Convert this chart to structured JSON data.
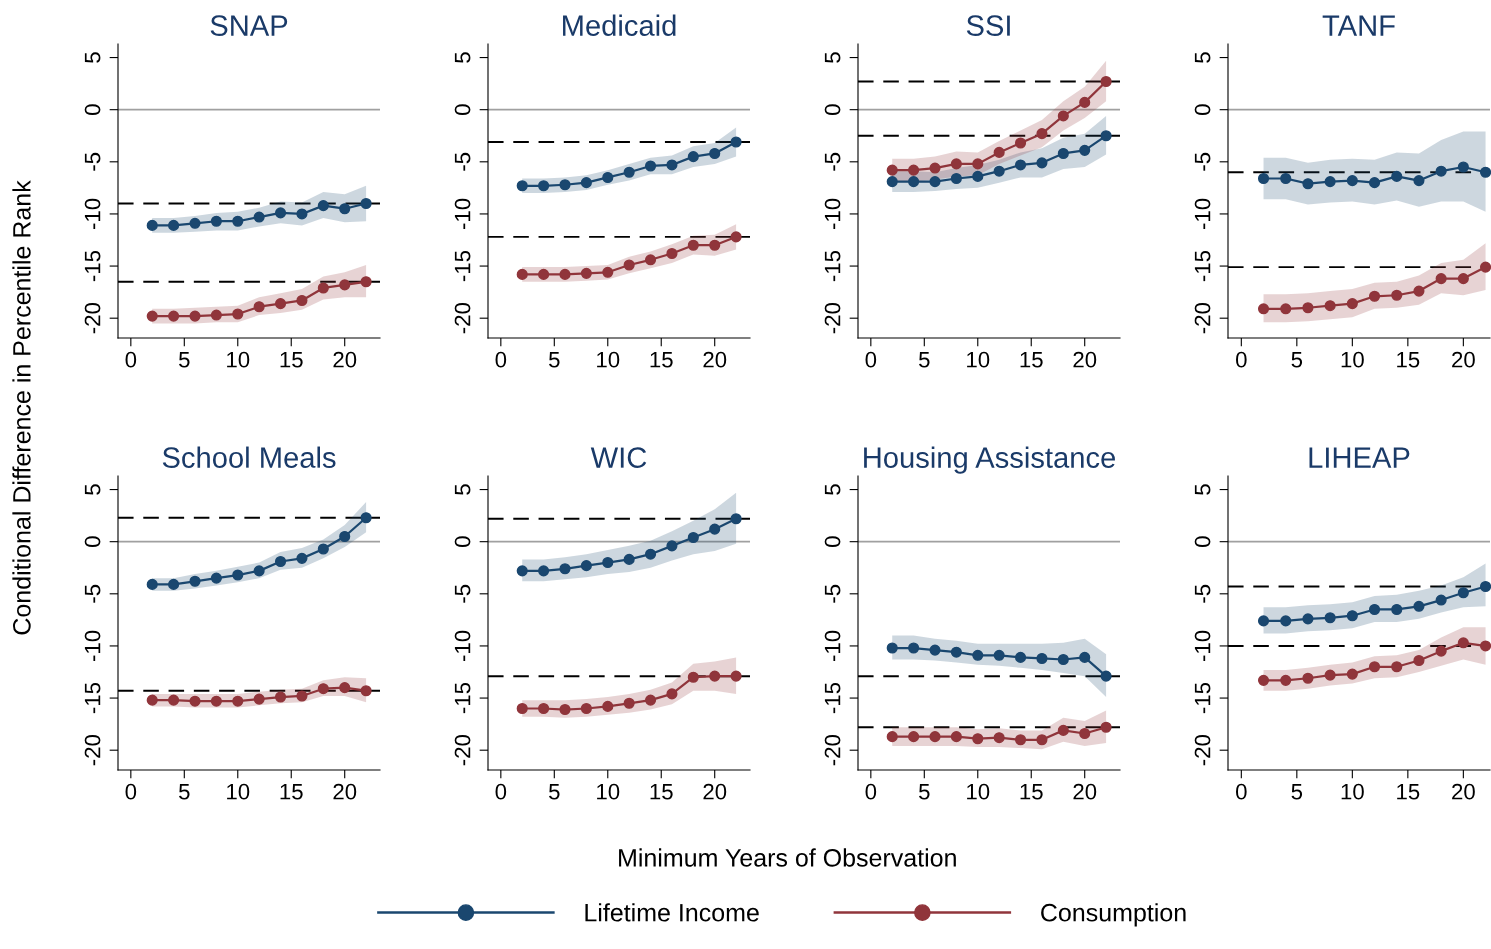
{
  "chart_data": [
    {
      "type": "line",
      "title": "SNAP",
      "annotations": [
        "Minimum Years of Observation",
        "Conditional Difference in Percentile Rank"
      ],
      "legend": "bottom",
      "marker": "circle",
      "line_style": "solid",
      "grid": false,
      "x": [
        2,
        4,
        6,
        8,
        10,
        12,
        14,
        16,
        18,
        20,
        22
      ],
      "xlim": [
        -1.2,
        23.3
      ],
      "ylim": [
        -21.9,
        6.3
      ],
      "xticks": [
        0,
        5,
        10,
        15,
        20
      ],
      "yticks": [
        -20,
        -15,
        -10,
        -5,
        0,
        5
      ],
      "series": [
        {
          "name": "Lifetime Income",
          "color": "#1a476f",
          "values": [
            -11.1,
            -11.1,
            -10.9,
            -10.7,
            -10.7,
            -10.3,
            -9.9,
            -10.0,
            -9.2,
            -9.5,
            -9.0
          ],
          "lower": [
            -11.8,
            -11.8,
            -11.7,
            -11.6,
            -11.6,
            -11.2,
            -10.9,
            -11.1,
            -10.4,
            -10.8,
            -10.7
          ],
          "upper": [
            -10.4,
            -10.4,
            -10.2,
            -9.9,
            -9.8,
            -9.4,
            -8.8,
            -8.9,
            -7.9,
            -8.1,
            -7.3
          ]
        },
        {
          "name": "Consumption",
          "color": "#90353b",
          "values": [
            -19.8,
            -19.8,
            -19.8,
            -19.7,
            -19.6,
            -18.9,
            -18.6,
            -18.3,
            -17.1,
            -16.8,
            -16.5
          ],
          "lower": [
            -20.5,
            -20.5,
            -20.5,
            -20.4,
            -20.4,
            -19.7,
            -19.5,
            -19.2,
            -18.2,
            -18.0,
            -18.0
          ],
          "upper": [
            -19.1,
            -19.1,
            -19.0,
            -18.9,
            -18.8,
            -18.0,
            -17.6,
            -17.2,
            -16.0,
            -15.6,
            -14.9
          ]
        }
      ],
      "ref_lines": [
        {
          "axis": "y",
          "value": 0,
          "color": "#a0a0a0",
          "line_style": "solid"
        },
        {
          "axis": "y",
          "value": -9.0,
          "color": "#000000",
          "line_style": "dashed"
        },
        {
          "axis": "y",
          "value": -16.5,
          "color": "#000000",
          "line_style": "dashed"
        }
      ]
    },
    {
      "type": "line",
      "title": "Medicaid",
      "marker": "circle",
      "line_style": "solid",
      "grid": false,
      "x": [
        2,
        4,
        6,
        8,
        10,
        12,
        14,
        16,
        18,
        20,
        22
      ],
      "xlim": [
        -1.2,
        23.3
      ],
      "ylim": [
        -21.9,
        6.3
      ],
      "xticks": [
        0,
        5,
        10,
        15,
        20
      ],
      "yticks": [
        -20,
        -15,
        -10,
        -5,
        0,
        5
      ],
      "series": [
        {
          "color": "#1a476f",
          "values": [
            -7.3,
            -7.3,
            -7.2,
            -7.0,
            -6.5,
            -6.0,
            -5.4,
            -5.3,
            -4.5,
            -4.2,
            -3.1
          ],
          "lower": [
            -8.0,
            -8.0,
            -7.9,
            -7.7,
            -7.2,
            -6.8,
            -6.2,
            -6.2,
            -5.5,
            -5.2,
            -4.5
          ],
          "upper": [
            -6.6,
            -6.6,
            -6.5,
            -6.3,
            -5.8,
            -5.2,
            -4.6,
            -4.4,
            -3.5,
            -3.2,
            -1.7
          ]
        },
        {
          "color": "#90353b",
          "values": [
            -15.8,
            -15.8,
            -15.8,
            -15.7,
            -15.6,
            -14.9,
            -14.4,
            -13.8,
            -13.0,
            -13.0,
            -12.2
          ],
          "lower": [
            -16.5,
            -16.5,
            -16.5,
            -16.4,
            -16.3,
            -15.7,
            -15.2,
            -14.7,
            -13.9,
            -14.0,
            -13.4
          ],
          "upper": [
            -15.1,
            -15.1,
            -15.1,
            -15.0,
            -14.9,
            -14.1,
            -13.6,
            -12.9,
            -12.1,
            -12.0,
            -11.0
          ]
        }
      ],
      "ref_lines": [
        {
          "axis": "y",
          "value": 0,
          "color": "#a0a0a0",
          "line_style": "solid"
        },
        {
          "axis": "y",
          "value": -3.1,
          "color": "#000000",
          "line_style": "dashed"
        },
        {
          "axis": "y",
          "value": -12.2,
          "color": "#000000",
          "line_style": "dashed"
        }
      ]
    },
    {
      "type": "line",
      "title": "SSI",
      "marker": "circle",
      "line_style": "solid",
      "grid": false,
      "x": [
        2,
        4,
        6,
        8,
        10,
        12,
        14,
        16,
        18,
        20,
        22
      ],
      "xlim": [
        -1.2,
        23.3
      ],
      "ylim": [
        -21.9,
        6.3
      ],
      "xticks": [
        0,
        5,
        10,
        15,
        20
      ],
      "yticks": [
        -20,
        -15,
        -10,
        -5,
        0,
        5
      ],
      "series": [
        {
          "color": "#1a476f",
          "values": [
            -6.9,
            -6.9,
            -6.9,
            -6.6,
            -6.4,
            -5.9,
            -5.3,
            -5.1,
            -4.2,
            -3.9,
            -2.5
          ],
          "lower": [
            -7.9,
            -7.9,
            -7.8,
            -7.6,
            -7.5,
            -7.0,
            -6.5,
            -6.5,
            -5.7,
            -5.5,
            -4.3
          ],
          "upper": [
            -5.9,
            -5.9,
            -6.0,
            -5.6,
            -5.3,
            -4.8,
            -4.1,
            -3.7,
            -2.7,
            -2.3,
            -0.6
          ]
        },
        {
          "color": "#90353b",
          "values": [
            -5.8,
            -5.8,
            -5.6,
            -5.2,
            -5.2,
            -4.1,
            -3.2,
            -2.3,
            -0.6,
            0.7,
            2.7
          ],
          "lower": [
            -6.9,
            -6.9,
            -6.7,
            -6.4,
            -6.3,
            -5.2,
            -4.4,
            -3.6,
            -2.0,
            -0.8,
            0.8
          ],
          "upper": [
            -4.7,
            -4.7,
            -4.5,
            -4.0,
            -4.1,
            -3.0,
            -2.0,
            -1.0,
            0.8,
            2.2,
            4.7
          ]
        }
      ],
      "ref_lines": [
        {
          "axis": "y",
          "value": 0,
          "color": "#a0a0a0",
          "line_style": "solid"
        },
        {
          "axis": "y",
          "value": -2.5,
          "color": "#000000",
          "line_style": "dashed"
        },
        {
          "axis": "y",
          "value": 2.7,
          "color": "#000000",
          "line_style": "dashed"
        }
      ]
    },
    {
      "type": "line",
      "title": "TANF",
      "marker": "circle",
      "line_style": "solid",
      "grid": false,
      "x": [
        2,
        4,
        6,
        8,
        10,
        12,
        14,
        16,
        18,
        20,
        22
      ],
      "xlim": [
        -1.2,
        22.4
      ],
      "ylim": [
        -21.9,
        6.3
      ],
      "xticks": [
        0,
        5,
        10,
        15,
        20
      ],
      "yticks": [
        -20,
        -15,
        -10,
        -5,
        0,
        5
      ],
      "series": [
        {
          "color": "#1a476f",
          "values": [
            -6.6,
            -6.6,
            -7.1,
            -6.9,
            -6.8,
            -7.0,
            -6.4,
            -6.8,
            -5.9,
            -5.5,
            -6.0
          ],
          "lower": [
            -8.6,
            -8.6,
            -9.1,
            -8.9,
            -8.8,
            -9.1,
            -8.7,
            -9.3,
            -8.8,
            -8.8,
            -9.8
          ],
          "upper": [
            -4.6,
            -4.6,
            -5.1,
            -4.8,
            -4.7,
            -4.8,
            -4.1,
            -4.2,
            -2.9,
            -2.1,
            -2.1
          ]
        },
        {
          "color": "#90353b",
          "values": [
            -19.1,
            -19.1,
            -19.0,
            -18.8,
            -18.6,
            -17.9,
            -17.8,
            -17.4,
            -16.2,
            -16.2,
            -15.1
          ],
          "lower": [
            -20.4,
            -20.4,
            -20.3,
            -20.1,
            -19.9,
            -19.1,
            -19.0,
            -18.7,
            -17.6,
            -17.8,
            -17.3
          ],
          "upper": [
            -17.7,
            -17.7,
            -17.6,
            -17.4,
            -17.2,
            -16.6,
            -16.5,
            -15.9,
            -14.7,
            -14.4,
            -12.8
          ]
        }
      ],
      "ref_lines": [
        {
          "axis": "y",
          "value": 0,
          "color": "#a0a0a0",
          "line_style": "solid"
        },
        {
          "axis": "y",
          "value": -6.0,
          "color": "#000000",
          "line_style": "dashed"
        },
        {
          "axis": "y",
          "value": -15.1,
          "color": "#000000",
          "line_style": "dashed"
        }
      ]
    },
    {
      "type": "line",
      "title": "School Meals",
      "marker": "circle",
      "line_style": "solid",
      "grid": false,
      "x": [
        2,
        4,
        6,
        8,
        10,
        12,
        14,
        16,
        18,
        20,
        22
      ],
      "xlim": [
        -1.2,
        23.3
      ],
      "ylim": [
        -21.9,
        6.3
      ],
      "xticks": [
        0,
        5,
        10,
        15,
        20
      ],
      "yticks": [
        -20,
        -15,
        -10,
        -5,
        0,
        5
      ],
      "series": [
        {
          "color": "#1a476f",
          "values": [
            -4.1,
            -4.1,
            -3.8,
            -3.5,
            -3.2,
            -2.8,
            -1.9,
            -1.6,
            -0.7,
            0.5,
            2.3
          ],
          "lower": [
            -4.7,
            -4.7,
            -4.5,
            -4.2,
            -3.9,
            -3.5,
            -2.7,
            -2.5,
            -1.6,
            -0.5,
            0.9
          ],
          "upper": [
            -3.5,
            -3.5,
            -3.1,
            -2.8,
            -2.4,
            -2.0,
            -1.0,
            -0.6,
            0.2,
            1.6,
            3.8
          ]
        },
        {
          "color": "#90353b",
          "values": [
            -15.2,
            -15.2,
            -15.3,
            -15.3,
            -15.3,
            -15.1,
            -14.9,
            -14.8,
            -14.1,
            -14.0,
            -14.3
          ],
          "lower": [
            -15.8,
            -15.8,
            -15.9,
            -15.9,
            -15.9,
            -15.7,
            -15.5,
            -15.4,
            -14.8,
            -14.8,
            -15.4
          ],
          "upper": [
            -14.6,
            -14.6,
            -14.6,
            -14.6,
            -14.6,
            -14.4,
            -14.2,
            -14.1,
            -13.3,
            -13.0,
            -13.1
          ]
        }
      ],
      "ref_lines": [
        {
          "axis": "y",
          "value": 0,
          "color": "#a0a0a0",
          "line_style": "solid"
        },
        {
          "axis": "y",
          "value": 2.3,
          "color": "#000000",
          "line_style": "dashed"
        },
        {
          "axis": "y",
          "value": -14.3,
          "color": "#000000",
          "line_style": "dashed"
        }
      ]
    },
    {
      "type": "line",
      "title": "WIC",
      "marker": "circle",
      "line_style": "solid",
      "grid": false,
      "x": [
        2,
        4,
        6,
        8,
        10,
        12,
        14,
        16,
        18,
        20,
        22
      ],
      "xlim": [
        -1.2,
        23.3
      ],
      "ylim": [
        -21.9,
        6.3
      ],
      "xticks": [
        0,
        5,
        10,
        15,
        20
      ],
      "yticks": [
        -20,
        -15,
        -10,
        -5,
        0,
        5
      ],
      "series": [
        {
          "color": "#1a476f",
          "values": [
            -2.8,
            -2.8,
            -2.6,
            -2.3,
            -2.0,
            -1.7,
            -1.2,
            -0.4,
            0.4,
            1.2,
            2.2
          ],
          "lower": [
            -3.8,
            -3.8,
            -3.6,
            -3.4,
            -3.1,
            -2.9,
            -2.5,
            -1.8,
            -1.2,
            -0.9,
            -0.2
          ],
          "upper": [
            -1.7,
            -1.7,
            -1.5,
            -1.2,
            -0.8,
            -0.4,
            0.1,
            1.0,
            2.0,
            3.1,
            4.7
          ]
        },
        {
          "color": "#90353b",
          "values": [
            -16.0,
            -16.0,
            -16.1,
            -16.0,
            -15.8,
            -15.5,
            -15.2,
            -14.6,
            -13.0,
            -12.9,
            -12.9
          ],
          "lower": [
            -16.8,
            -16.8,
            -16.9,
            -16.8,
            -16.6,
            -16.4,
            -16.1,
            -15.6,
            -14.3,
            -14.3,
            -14.6
          ],
          "upper": [
            -15.2,
            -15.2,
            -15.2,
            -15.1,
            -14.9,
            -14.6,
            -14.2,
            -13.5,
            -11.7,
            -11.5,
            -11.1
          ]
        }
      ],
      "ref_lines": [
        {
          "axis": "y",
          "value": 0,
          "color": "#a0a0a0",
          "line_style": "solid"
        },
        {
          "axis": "y",
          "value": 2.2,
          "color": "#000000",
          "line_style": "dashed"
        },
        {
          "axis": "y",
          "value": -12.9,
          "color": "#000000",
          "line_style": "dashed"
        }
      ]
    },
    {
      "type": "line",
      "title": "Housing Assistance",
      "marker": "circle",
      "line_style": "solid",
      "grid": false,
      "x": [
        2,
        4,
        6,
        8,
        10,
        12,
        14,
        16,
        18,
        20,
        22
      ],
      "xlim": [
        -1.2,
        23.3
      ],
      "ylim": [
        -21.9,
        6.3
      ],
      "xticks": [
        0,
        5,
        10,
        15,
        20
      ],
      "yticks": [
        -20,
        -15,
        -10,
        -5,
        0,
        5
      ],
      "series": [
        {
          "color": "#1a476f",
          "values": [
            -10.2,
            -10.2,
            -10.4,
            -10.6,
            -10.9,
            -10.9,
            -11.1,
            -11.2,
            -11.3,
            -11.1,
            -12.9
          ],
          "lower": [
            -11.3,
            -11.3,
            -11.4,
            -11.6,
            -11.8,
            -11.9,
            -12.1,
            -12.3,
            -12.6,
            -12.9,
            -14.9
          ],
          "upper": [
            -9.0,
            -9.0,
            -9.3,
            -9.5,
            -9.8,
            -9.8,
            -9.8,
            -9.8,
            -9.7,
            -9.3,
            -10.8
          ]
        },
        {
          "color": "#90353b",
          "values": [
            -18.7,
            -18.7,
            -18.7,
            -18.7,
            -18.9,
            -18.8,
            -19.0,
            -19.0,
            -18.1,
            -18.4,
            -17.8
          ],
          "lower": [
            -19.6,
            -19.6,
            -19.6,
            -19.6,
            -19.7,
            -19.7,
            -19.8,
            -19.9,
            -19.2,
            -19.6,
            -19.3
          ],
          "upper": [
            -17.8,
            -17.8,
            -17.8,
            -17.8,
            -18.0,
            -17.9,
            -18.1,
            -18.1,
            -16.9,
            -17.2,
            -16.2
          ]
        }
      ],
      "ref_lines": [
        {
          "axis": "y",
          "value": 0,
          "color": "#a0a0a0",
          "line_style": "solid"
        },
        {
          "axis": "y",
          "value": -12.9,
          "color": "#000000",
          "line_style": "dashed"
        },
        {
          "axis": "y",
          "value": -17.8,
          "color": "#000000",
          "line_style": "dashed"
        }
      ]
    },
    {
      "type": "line",
      "title": "LIHEAP",
      "marker": "circle",
      "line_style": "solid",
      "grid": false,
      "x": [
        2,
        4,
        6,
        8,
        10,
        12,
        14,
        16,
        18,
        20,
        22
      ],
      "xlim": [
        -1.2,
        22.4
      ],
      "ylim": [
        -21.9,
        6.3
      ],
      "xticks": [
        0,
        5,
        10,
        15,
        20
      ],
      "yticks": [
        -20,
        -15,
        -10,
        -5,
        0,
        5
      ],
      "series": [
        {
          "color": "#1a476f",
          "values": [
            -7.6,
            -7.6,
            -7.4,
            -7.3,
            -7.1,
            -6.5,
            -6.5,
            -6.2,
            -5.6,
            -4.9,
            -4.3
          ],
          "lower": [
            -8.8,
            -8.8,
            -8.6,
            -8.5,
            -8.3,
            -7.7,
            -7.7,
            -7.4,
            -6.8,
            -6.3,
            -6.2
          ],
          "upper": [
            -6.3,
            -6.3,
            -6.1,
            -6.0,
            -5.8,
            -5.2,
            -5.1,
            -4.7,
            -4.2,
            -3.4,
            -2.1
          ]
        },
        {
          "color": "#90353b",
          "values": [
            -13.3,
            -13.3,
            -13.1,
            -12.8,
            -12.7,
            -12.0,
            -12.0,
            -11.4,
            -10.5,
            -9.7,
            -10.0
          ],
          "lower": [
            -14.3,
            -14.3,
            -14.1,
            -13.8,
            -13.6,
            -13.1,
            -13.0,
            -12.5,
            -11.9,
            -11.3,
            -11.8
          ],
          "upper": [
            -12.3,
            -12.3,
            -12.1,
            -11.8,
            -11.6,
            -11.0,
            -10.9,
            -10.4,
            -9.2,
            -8.2,
            -8.2
          ]
        }
      ],
      "ref_lines": [
        {
          "axis": "y",
          "value": 0,
          "color": "#a0a0a0",
          "line_style": "solid"
        },
        {
          "axis": "y",
          "value": -4.3,
          "color": "#000000",
          "line_style": "dashed"
        },
        {
          "axis": "y",
          "value": -10.0,
          "color": "#000000",
          "line_style": "dashed"
        }
      ]
    }
  ]
}
